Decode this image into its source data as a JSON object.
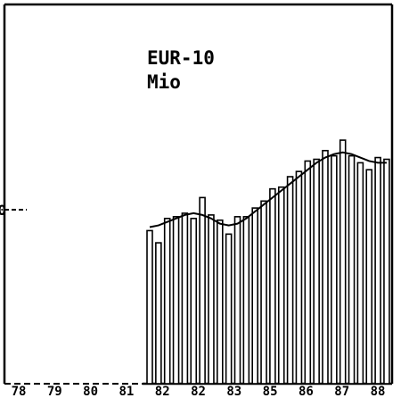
{
  "chart_data": {
    "type": "bar",
    "labels": [
      "EUR-10",
      "Mio"
    ],
    "categories": [
      null,
      null,
      null,
      null,
      null,
      null,
      null,
      null,
      null,
      null,
      null,
      null,
      null,
      null,
      null,
      null,
      null,
      null,
      null,
      null,
      null,
      null,
      null,
      null,
      null,
      null,
      null,
      null
    ],
    "series": [
      {
        "color": "#000000",
        "values": [
          88,
          81,
          95,
          96,
          98,
          95,
          107,
          97,
          94,
          86,
          96,
          96,
          101,
          105,
          112,
          113,
          119,
          122,
          128,
          129,
          134,
          131,
          140,
          131,
          127,
          123,
          130,
          129
        ]
      },
      {
        "type": "line",
        "color": "#000000",
        "values": [
          90,
          91,
          93,
          95,
          97,
          98,
          97,
          95,
          92,
          91,
          92,
          95,
          99,
          103,
          107,
          111,
          115,
          119,
          123,
          127,
          130,
          132,
          133,
          132,
          130,
          128,
          127,
          127
        ]
      }
    ],
    "xtick_labels": [
      "78",
      "79",
      "80",
      "81",
      "82",
      "82",
      "83",
      "85",
      "86",
      "87",
      "88"
    ],
    "ylim": [
      0,
      218
    ],
    "yticks": [
      100
    ]
  }
}
